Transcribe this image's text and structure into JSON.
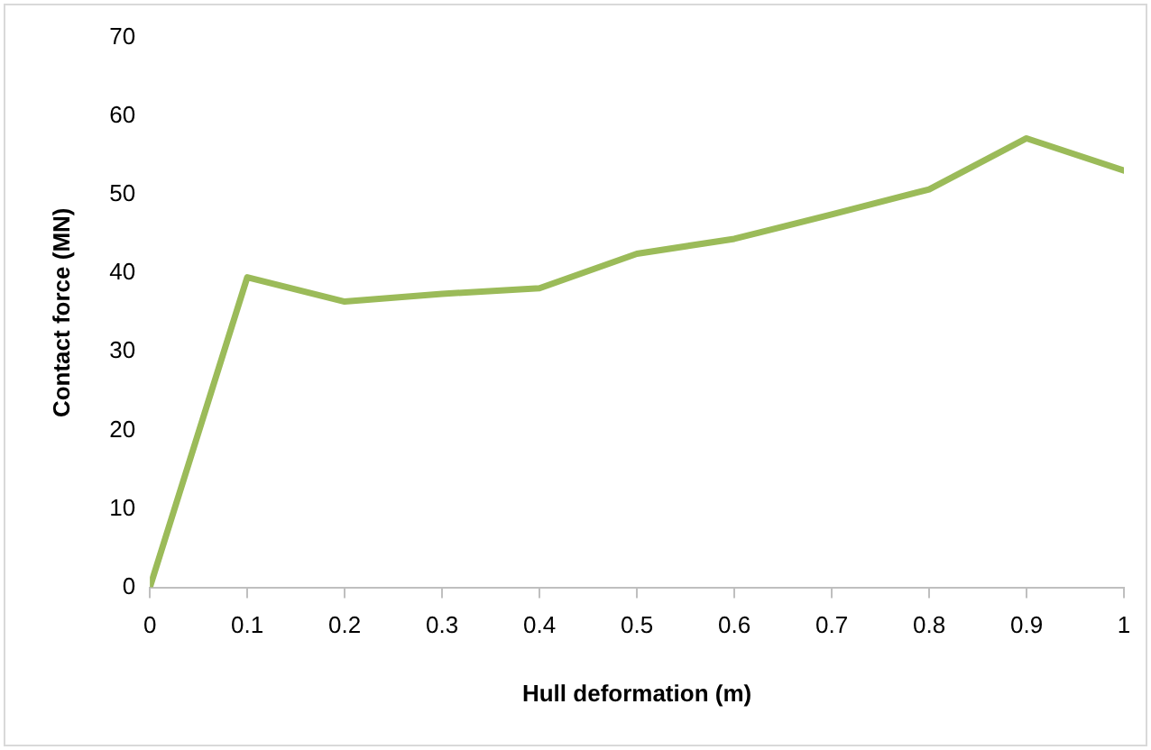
{
  "chart_data": {
    "type": "line",
    "xlabel": "Hull deformation (m)",
    "ylabel": "Contact force (MN)",
    "x": [
      0,
      0.1,
      0.2,
      0.3,
      0.4,
      0.5,
      0.6,
      0.7,
      0.8,
      0.9,
      1
    ],
    "series": [
      {
        "color": "#9bbb59",
        "values": [
          0,
          39.5,
          36.4,
          37.4,
          38.1,
          42.5,
          44.4,
          47.5,
          50.7,
          57.2,
          53.1
        ]
      }
    ],
    "xlim": [
      0,
      1
    ],
    "xticks": [
      0,
      0.1,
      0.2,
      0.3,
      0.4,
      0.5,
      0.6,
      0.7,
      0.8,
      0.9,
      1
    ],
    "ylim": [
      0,
      70
    ],
    "yticks": [
      0,
      10,
      20,
      30,
      40,
      50,
      60,
      70
    ],
    "grid": false,
    "legend": false,
    "marker": "none"
  }
}
